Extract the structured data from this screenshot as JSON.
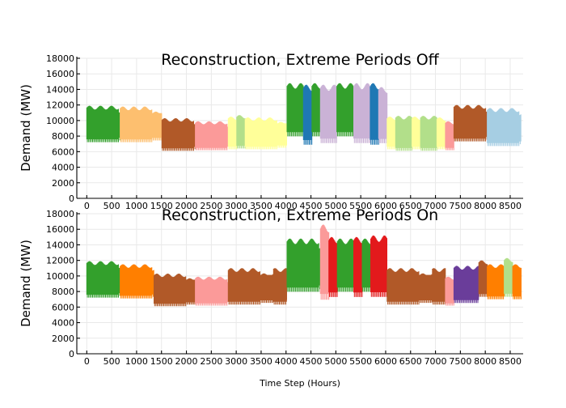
{
  "chart_data": [
    {
      "type": "area",
      "title": "Reconstruction, Extreme Periods Off",
      "ylabel": "Demand (MW)",
      "xlabel": "",
      "xlim": [
        -200,
        8760
      ],
      "ylim": [
        0,
        18000
      ],
      "xticks": [
        0,
        500,
        1000,
        1500,
        2000,
        2500,
        3000,
        3500,
        4000,
        4500,
        5000,
        5500,
        6000,
        6500,
        7000,
        7500,
        8000,
        8500
      ],
      "yticks": [
        0,
        2000,
        4000,
        6000,
        8000,
        10000,
        12000,
        14000,
        16000,
        18000
      ],
      "grid": true,
      "legend": "none",
      "segments": [
        {
          "x_start": 0,
          "x_end": 670,
          "y_min": 7100,
          "y_max": 11900,
          "color": "#33a02c"
        },
        {
          "x_start": 670,
          "x_end": 1510,
          "y_min": 7100,
          "y_max": 11800,
          "color": "#fdbf6f"
        },
        {
          "x_start": 1510,
          "x_end": 2180,
          "y_min": 6000,
          "y_max": 10300,
          "color": "#b15928"
        },
        {
          "x_start": 2180,
          "x_end": 2840,
          "y_min": 6100,
          "y_max": 9900,
          "color": "#fb9a99"
        },
        {
          "x_start": 2840,
          "x_end": 3010,
          "y_min": 6200,
          "y_max": 10500,
          "color": "#ffff99"
        },
        {
          "x_start": 3010,
          "x_end": 3180,
          "y_min": 6300,
          "y_max": 10700,
          "color": "#b2df8a"
        },
        {
          "x_start": 3180,
          "x_end": 4020,
          "y_min": 6200,
          "y_max": 10400,
          "color": "#ffff99"
        },
        {
          "x_start": 4020,
          "x_end": 4350,
          "y_min": 7800,
          "y_max": 14800,
          "color": "#33a02c"
        },
        {
          "x_start": 4350,
          "x_end": 4520,
          "y_min": 6700,
          "y_max": 14600,
          "color": "#1f78b4"
        },
        {
          "x_start": 4520,
          "x_end": 4690,
          "y_min": 7800,
          "y_max": 14800,
          "color": "#33a02c"
        },
        {
          "x_start": 4690,
          "x_end": 5020,
          "y_min": 6900,
          "y_max": 14600,
          "color": "#cab2d6"
        },
        {
          "x_start": 5020,
          "x_end": 5360,
          "y_min": 7800,
          "y_max": 14800,
          "color": "#33a02c"
        },
        {
          "x_start": 5360,
          "x_end": 5690,
          "y_min": 6900,
          "y_max": 14800,
          "color": "#cab2d6"
        },
        {
          "x_start": 5690,
          "x_end": 5860,
          "y_min": 6700,
          "y_max": 14800,
          "color": "#1f78b4"
        },
        {
          "x_start": 5860,
          "x_end": 6030,
          "y_min": 6900,
          "y_max": 14300,
          "color": "#cab2d6"
        },
        {
          "x_start": 6030,
          "x_end": 6200,
          "y_min": 6200,
          "y_max": 10500,
          "color": "#ffff99"
        },
        {
          "x_start": 6200,
          "x_end": 6530,
          "y_min": 6000,
          "y_max": 10600,
          "color": "#b2df8a"
        },
        {
          "x_start": 6530,
          "x_end": 6700,
          "y_min": 6200,
          "y_max": 10500,
          "color": "#ffff99"
        },
        {
          "x_start": 6700,
          "x_end": 7030,
          "y_min": 6000,
          "y_max": 10600,
          "color": "#b2df8a"
        },
        {
          "x_start": 7030,
          "x_end": 7200,
          "y_min": 6200,
          "y_max": 10400,
          "color": "#ffff99"
        },
        {
          "x_start": 7200,
          "x_end": 7370,
          "y_min": 6100,
          "y_max": 9900,
          "color": "#fb9a99"
        },
        {
          "x_start": 7370,
          "x_end": 8040,
          "y_min": 7200,
          "y_max": 12000,
          "color": "#b15928"
        },
        {
          "x_start": 8040,
          "x_end": 8720,
          "y_min": 6600,
          "y_max": 11600,
          "color": "#a6cee3"
        }
      ]
    },
    {
      "type": "area",
      "title": "Reconstruction, Extreme Periods On",
      "ylabel": "Demand (MW)",
      "xlabel": "Time Step (Hours)",
      "xlim": [
        -200,
        8760
      ],
      "ylim": [
        0,
        18000
      ],
      "xticks": [
        0,
        500,
        1000,
        1500,
        2000,
        2500,
        3000,
        3500,
        4000,
        4500,
        5000,
        5500,
        6000,
        6500,
        7000,
        7500,
        8000,
        8500
      ],
      "yticks": [
        0,
        2000,
        4000,
        6000,
        8000,
        10000,
        12000,
        14000,
        16000,
        18000
      ],
      "grid": true,
      "legend": "none",
      "segments": [
        {
          "x_start": 0,
          "x_end": 670,
          "y_min": 7100,
          "y_max": 11900,
          "color": "#33a02c"
        },
        {
          "x_start": 670,
          "x_end": 1350,
          "y_min": 7000,
          "y_max": 11500,
          "color": "#ff7f00"
        },
        {
          "x_start": 1350,
          "x_end": 2180,
          "y_min": 6000,
          "y_max": 10300,
          "color": "#b15928"
        },
        {
          "x_start": 2180,
          "x_end": 2840,
          "y_min": 6100,
          "y_max": 9900,
          "color": "#fb9a99"
        },
        {
          "x_start": 2840,
          "x_end": 4020,
          "y_min": 6200,
          "y_max": 11000,
          "color": "#b15928"
        },
        {
          "x_start": 4020,
          "x_end": 4690,
          "y_min": 7800,
          "y_max": 14800,
          "color": "#33a02c"
        },
        {
          "x_start": 4690,
          "x_end": 4860,
          "y_min": 6700,
          "y_max": 16600,
          "color": "#fb9a99"
        },
        {
          "x_start": 4860,
          "x_end": 5030,
          "y_min": 7100,
          "y_max": 15000,
          "color": "#e31a1c"
        },
        {
          "x_start": 5030,
          "x_end": 5360,
          "y_min": 7800,
          "y_max": 14800,
          "color": "#33a02c"
        },
        {
          "x_start": 5360,
          "x_end": 5530,
          "y_min": 7100,
          "y_max": 15000,
          "color": "#e31a1c"
        },
        {
          "x_start": 5530,
          "x_end": 5700,
          "y_min": 7800,
          "y_max": 14800,
          "color": "#33a02c"
        },
        {
          "x_start": 5700,
          "x_end": 6030,
          "y_min": 7100,
          "y_max": 15200,
          "color": "#e31a1c"
        },
        {
          "x_start": 6030,
          "x_end": 7200,
          "y_min": 6200,
          "y_max": 11000,
          "color": "#b15928"
        },
        {
          "x_start": 7200,
          "x_end": 7370,
          "y_min": 6100,
          "y_max": 9900,
          "color": "#fb9a99"
        },
        {
          "x_start": 7370,
          "x_end": 7870,
          "y_min": 6400,
          "y_max": 11300,
          "color": "#6a3d9a"
        },
        {
          "x_start": 7870,
          "x_end": 8040,
          "y_min": 7200,
          "y_max": 12000,
          "color": "#b15928"
        },
        {
          "x_start": 8040,
          "x_end": 8380,
          "y_min": 6900,
          "y_max": 11500,
          "color": "#ff7f00"
        },
        {
          "x_start": 8380,
          "x_end": 8550,
          "y_min": 7200,
          "y_max": 12300,
          "color": "#b2df8a"
        },
        {
          "x_start": 8550,
          "x_end": 8720,
          "y_min": 6900,
          "y_max": 11500,
          "color": "#ff7f00"
        }
      ]
    }
  ]
}
